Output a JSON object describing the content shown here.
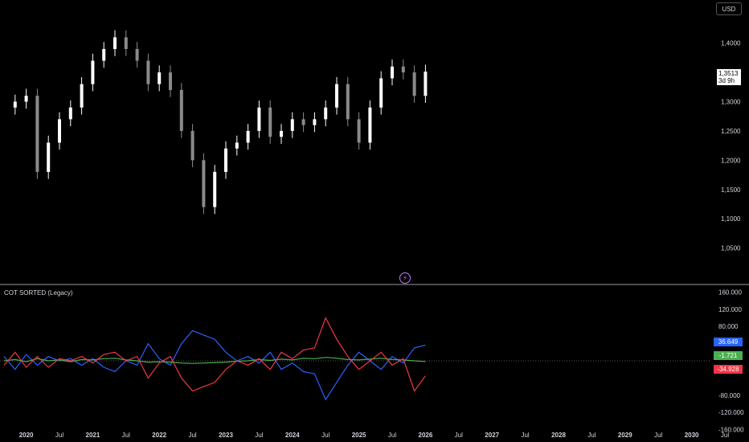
{
  "currency": "USD",
  "last_price": "1,3513",
  "time_to_close": "3d 9h",
  "indicator_title": "COT SORTED (Legacy)",
  "icons": [
    "lightning-icon"
  ],
  "colors": {
    "blue": "#2962ff",
    "green": "#4caf50",
    "red": "#f23645",
    "candle_up": "#ffffff",
    "candle_down": "#8a8a8a"
  },
  "badges": [
    {
      "label": "36.649",
      "color": "#2962ff"
    },
    {
      "label": "-1.721",
      "color": "#4caf50"
    },
    {
      "label": "-34.928",
      "color": "#f23645"
    }
  ],
  "x_axis_labels": [
    "2020",
    "Jul",
    "2021",
    "Jul",
    "2022",
    "Jul",
    "2023",
    "Jul",
    "2024",
    "Jul",
    "2025",
    "Jul",
    "2026",
    "Jul",
    "2027",
    "Jul",
    "2028",
    "Jul",
    "2029",
    "Jul",
    "2030",
    "Jul"
  ],
  "chart_data": [
    {
      "type": "candlestick",
      "x_range": [
        "2019-09",
        "2030-12"
      ],
      "ylim": [
        1.0,
        1.46
      ],
      "y_ticks": [
        "1,4000",
        "1,3500",
        "1,3000",
        "1,2500",
        "1,2000",
        "1,1500",
        "1,1000",
        "1,0500"
      ],
      "series": [
        {
          "values": [
            [
              "2019-09",
              1.29
            ],
            [
              "2019-11",
              1.3
            ],
            [
              "2020-01",
              1.31
            ],
            [
              "2020-03",
              1.18
            ],
            [
              "2020-05",
              1.23
            ],
            [
              "2020-07",
              1.27
            ],
            [
              "2020-09",
              1.29
            ],
            [
              "2020-11",
              1.33
            ],
            [
              "2021-01",
              1.37
            ],
            [
              "2021-03",
              1.39
            ],
            [
              "2021-05",
              1.41
            ],
            [
              "2021-07",
              1.39
            ],
            [
              "2021-09",
              1.37
            ],
            [
              "2021-11",
              1.33
            ],
            [
              "2022-01",
              1.35
            ],
            [
              "2022-03",
              1.32
            ],
            [
              "2022-05",
              1.25
            ],
            [
              "2022-07",
              1.2
            ],
            [
              "2022-09",
              1.12
            ],
            [
              "2022-11",
              1.18
            ],
            [
              "2023-01",
              1.22
            ],
            [
              "2023-03",
              1.23
            ],
            [
              "2023-05",
              1.25
            ],
            [
              "2023-07",
              1.29
            ],
            [
              "2023-09",
              1.24
            ],
            [
              "2023-11",
              1.25
            ],
            [
              "2024-01",
              1.27
            ],
            [
              "2024-03",
              1.26
            ],
            [
              "2024-05",
              1.27
            ],
            [
              "2024-07",
              1.29
            ],
            [
              "2024-09",
              1.33
            ],
            [
              "2024-11",
              1.27
            ],
            [
              "2025-01",
              1.23
            ],
            [
              "2025-03",
              1.29
            ],
            [
              "2025-05",
              1.34
            ],
            [
              "2025-07",
              1.36
            ],
            [
              "2025-09",
              1.35
            ],
            [
              "2025-11",
              1.31
            ],
            [
              "2026-01",
              1.3513
            ]
          ]
        }
      ]
    },
    {
      "type": "line",
      "title": "COT SORTED (Legacy)",
      "x_range": [
        "2019-09",
        "2030-12"
      ],
      "ylim": [
        -170000,
        170000
      ],
      "y_ticks": [
        "160.000",
        "120.000",
        "80.000",
        "-80.000",
        "-120.000",
        "-160.000"
      ],
      "series": [
        {
          "color": "#2962ff",
          "values": [
            [
              "2019-09",
              10000
            ],
            [
              "2019-11",
              -20000
            ],
            [
              "2020-01",
              15000
            ],
            [
              "2020-03",
              -10000
            ],
            [
              "2020-05",
              10000
            ],
            [
              "2020-07",
              0
            ],
            [
              "2020-09",
              5000
            ],
            [
              "2020-11",
              -10000
            ],
            [
              "2021-01",
              5000
            ],
            [
              "2021-03",
              -15000
            ],
            [
              "2021-05",
              -25000
            ],
            [
              "2021-07",
              0
            ],
            [
              "2021-09",
              -10000
            ],
            [
              "2021-11",
              40000
            ],
            [
              "2022-01",
              5000
            ],
            [
              "2022-03",
              -10000
            ],
            [
              "2022-05",
              40000
            ],
            [
              "2022-07",
              70000
            ],
            [
              "2022-09",
              60000
            ],
            [
              "2022-11",
              50000
            ],
            [
              "2023-01",
              20000
            ],
            [
              "2023-03",
              0
            ],
            [
              "2023-05",
              10000
            ],
            [
              "2023-07",
              -5000
            ],
            [
              "2023-09",
              20000
            ],
            [
              "2023-11",
              -20000
            ],
            [
              "2024-01",
              -5000
            ],
            [
              "2024-03",
              -25000
            ],
            [
              "2024-05",
              -30000
            ],
            [
              "2024-07",
              -90000
            ],
            [
              "2024-09",
              -50000
            ],
            [
              "2024-11",
              -10000
            ],
            [
              "2025-01",
              20000
            ],
            [
              "2025-03",
              0
            ],
            [
              "2025-05",
              -20000
            ],
            [
              "2025-07",
              10000
            ],
            [
              "2025-09",
              -5000
            ],
            [
              "2025-11",
              30000
            ],
            [
              "2026-01",
              36649
            ]
          ]
        },
        {
          "color": "#4caf50",
          "values": [
            [
              "2019-09",
              0
            ],
            [
              "2019-11",
              3000
            ],
            [
              "2020-01",
              -2000
            ],
            [
              "2020-03",
              5000
            ],
            [
              "2020-05",
              0
            ],
            [
              "2020-07",
              2000
            ],
            [
              "2020-09",
              -2000
            ],
            [
              "2020-11",
              3000
            ],
            [
              "2021-01",
              2000
            ],
            [
              "2021-03",
              5000
            ],
            [
              "2021-05",
              6000
            ],
            [
              "2021-07",
              2000
            ],
            [
              "2021-09",
              0
            ],
            [
              "2021-11",
              -3000
            ],
            [
              "2022-01",
              -2000
            ],
            [
              "2022-03",
              -3000
            ],
            [
              "2022-05",
              -5000
            ],
            [
              "2022-07",
              -6000
            ],
            [
              "2022-09",
              -5000
            ],
            [
              "2022-11",
              -4000
            ],
            [
              "2023-01",
              -3000
            ],
            [
              "2023-03",
              -1000
            ],
            [
              "2023-05",
              0
            ],
            [
              "2023-07",
              3000
            ],
            [
              "2023-09",
              1000
            ],
            [
              "2023-11",
              4000
            ],
            [
              "2024-01",
              2000
            ],
            [
              "2024-03",
              6000
            ],
            [
              "2024-05",
              5000
            ],
            [
              "2024-07",
              8000
            ],
            [
              "2024-09",
              6000
            ],
            [
              "2024-11",
              3000
            ],
            [
              "2025-01",
              2000
            ],
            [
              "2025-03",
              4000
            ],
            [
              "2025-05",
              6000
            ],
            [
              "2025-07",
              3000
            ],
            [
              "2025-09",
              2000
            ],
            [
              "2025-11",
              0
            ],
            [
              "2026-01",
              -1721
            ]
          ]
        },
        {
          "color": "#f23645",
          "values": [
            [
              "2019-09",
              -10000
            ],
            [
              "2019-11",
              20000
            ],
            [
              "2020-01",
              -15000
            ],
            [
              "2020-03",
              10000
            ],
            [
              "2020-05",
              -15000
            ],
            [
              "2020-07",
              5000
            ],
            [
              "2020-09",
              0
            ],
            [
              "2020-11",
              10000
            ],
            [
              "2021-01",
              -5000
            ],
            [
              "2021-03",
              15000
            ],
            [
              "2021-05",
              20000
            ],
            [
              "2021-07",
              0
            ],
            [
              "2021-09",
              10000
            ],
            [
              "2021-11",
              -40000
            ],
            [
              "2022-01",
              -5000
            ],
            [
              "2022-03",
              10000
            ],
            [
              "2022-05",
              -40000
            ],
            [
              "2022-07",
              -70000
            ],
            [
              "2022-09",
              -60000
            ],
            [
              "2022-11",
              -50000
            ],
            [
              "2023-01",
              -20000
            ],
            [
              "2023-03",
              0
            ],
            [
              "2023-05",
              -10000
            ],
            [
              "2023-07",
              5000
            ],
            [
              "2023-09",
              -20000
            ],
            [
              "2023-11",
              20000
            ],
            [
              "2024-01",
              5000
            ],
            [
              "2024-03",
              25000
            ],
            [
              "2024-05",
              30000
            ],
            [
              "2024-07",
              100000
            ],
            [
              "2024-09",
              50000
            ],
            [
              "2024-11",
              10000
            ],
            [
              "2025-01",
              -20000
            ],
            [
              "2025-03",
              0
            ],
            [
              "2025-05",
              20000
            ],
            [
              "2025-07",
              -10000
            ],
            [
              "2025-09",
              5000
            ],
            [
              "2025-11",
              -70000
            ],
            [
              "2026-01",
              -34928
            ]
          ]
        }
      ]
    }
  ]
}
